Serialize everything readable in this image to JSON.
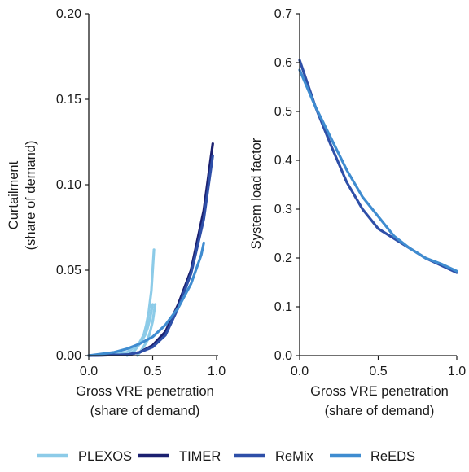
{
  "chart_data": [
    {
      "type": "line",
      "panel": "left",
      "xlabel": [
        "Gross VRE penetration",
        "(share of demand)"
      ],
      "ylabel": [
        "Curtailment",
        "(share of demand)"
      ],
      "xlim": [
        0,
        1
      ],
      "ylim": [
        0,
        0.2
      ],
      "xticks": [
        0,
        0.5,
        1
      ],
      "xtick_labels": [
        "0.0",
        "0.5",
        "1.0"
      ],
      "yticks": [
        0,
        0.05,
        0.1,
        0.15,
        0.2
      ],
      "ytick_labels": [
        "0.00",
        "0.05",
        "0.10",
        "0.15",
        "0.20"
      ],
      "grid": false,
      "series": [
        {
          "name": "PLEXOS",
          "color": "#8ccbe8",
          "points": [
            [
              0.0,
              0.0
            ],
            [
              0.2,
              0.001
            ],
            [
              0.3,
              0.002
            ],
            [
              0.36,
              0.005
            ],
            [
              0.4,
              0.008
            ],
            [
              0.43,
              0.012
            ],
            [
              0.45,
              0.018
            ],
            [
              0.47,
              0.026
            ],
            [
              0.49,
              0.038
            ],
            [
              0.5,
              0.05
            ],
            [
              0.51,
              0.062
            ]
          ]
        },
        {
          "name": "PLEXOS",
          "color": "#8ccbe8",
          "points": [
            [
              0.3,
              0.0
            ],
            [
              0.36,
              0.003
            ],
            [
              0.4,
              0.007
            ],
            [
              0.44,
              0.012
            ],
            [
              0.46,
              0.016
            ],
            [
              0.48,
              0.022
            ],
            [
              0.5,
              0.03
            ]
          ]
        },
        {
          "name": "PLEXOS",
          "color": "#8ccbe8",
          "points": [
            [
              0.38,
              0.0
            ],
            [
              0.42,
              0.004
            ],
            [
              0.46,
              0.009
            ],
            [
              0.48,
              0.014
            ],
            [
              0.5,
              0.02
            ],
            [
              0.52,
              0.03
            ]
          ]
        },
        {
          "name": "TIMER",
          "color": "#1b2070",
          "points": [
            [
              0.0,
              0.0
            ],
            [
              0.3,
              0.0005
            ],
            [
              0.4,
              0.002
            ],
            [
              0.5,
              0.006
            ],
            [
              0.6,
              0.014
            ],
            [
              0.7,
              0.03
            ],
            [
              0.8,
              0.05
            ],
            [
              0.9,
              0.085
            ],
            [
              0.97,
              0.124
            ]
          ]
        },
        {
          "name": "ReMix",
          "color": "#2e4fa8",
          "points": [
            [
              0.0,
              0.0
            ],
            [
              0.3,
              0.0005
            ],
            [
              0.4,
              0.002
            ],
            [
              0.5,
              0.005
            ],
            [
              0.6,
              0.012
            ],
            [
              0.7,
              0.028
            ],
            [
              0.8,
              0.048
            ],
            [
              0.9,
              0.08
            ],
            [
              0.97,
              0.117
            ]
          ]
        },
        {
          "name": "ReEDS",
          "color": "#3f8cd0",
          "points": [
            [
              0.0,
              0.0
            ],
            [
              0.2,
              0.002
            ],
            [
              0.3,
              0.004
            ],
            [
              0.4,
              0.007
            ],
            [
              0.5,
              0.011
            ],
            [
              0.6,
              0.018
            ],
            [
              0.7,
              0.028
            ],
            [
              0.8,
              0.042
            ],
            [
              0.88,
              0.059
            ],
            [
              0.9,
              0.066
            ]
          ]
        }
      ]
    },
    {
      "type": "line",
      "panel": "right",
      "xlabel": [
        "Gross VRE penetration",
        "(share of demand)"
      ],
      "ylabel": [
        "System load factor"
      ],
      "xlim": [
        0,
        1
      ],
      "ylim": [
        0,
        0.7
      ],
      "xticks": [
        0,
        0.5,
        1
      ],
      "xtick_labels": [
        "0.0",
        "0.5",
        "1.0"
      ],
      "yticks": [
        0,
        0.1,
        0.2,
        0.3,
        0.4,
        0.5,
        0.6,
        0.7
      ],
      "ytick_labels": [
        "0.0",
        "0.1",
        "0.2",
        "0.3",
        "0.4",
        "0.5",
        "0.6",
        "0.7"
      ],
      "grid": false,
      "series": [
        {
          "name": "ReMix",
          "color": "#2e4fa8",
          "points": [
            [
              0.0,
              0.605
            ],
            [
              0.1,
              0.51
            ],
            [
              0.2,
              0.43
            ],
            [
              0.3,
              0.355
            ],
            [
              0.4,
              0.3
            ],
            [
              0.5,
              0.26
            ],
            [
              0.6,
              0.24
            ],
            [
              0.7,
              0.22
            ],
            [
              0.8,
              0.2
            ],
            [
              0.9,
              0.185
            ],
            [
              1.0,
              0.17
            ]
          ]
        },
        {
          "name": "ReEDS",
          "color": "#3f8cd0",
          "points": [
            [
              0.0,
              0.585
            ],
            [
              0.1,
              0.51
            ],
            [
              0.2,
              0.445
            ],
            [
              0.3,
              0.38
            ],
            [
              0.4,
              0.325
            ],
            [
              0.5,
              0.285
            ],
            [
              0.6,
              0.245
            ],
            [
              0.7,
              0.22
            ],
            [
              0.8,
              0.2
            ],
            [
              0.9,
              0.188
            ],
            [
              1.0,
              0.173
            ]
          ]
        }
      ]
    }
  ],
  "legend": {
    "placement": "bottom",
    "items": [
      {
        "label": "PLEXOS",
        "color": "#8ccbe8"
      },
      {
        "label": "TIMER",
        "color": "#1b2070"
      },
      {
        "label": "ReMix",
        "color": "#2e4fa8"
      },
      {
        "label": "ReEDS",
        "color": "#3f8cd0"
      }
    ]
  }
}
